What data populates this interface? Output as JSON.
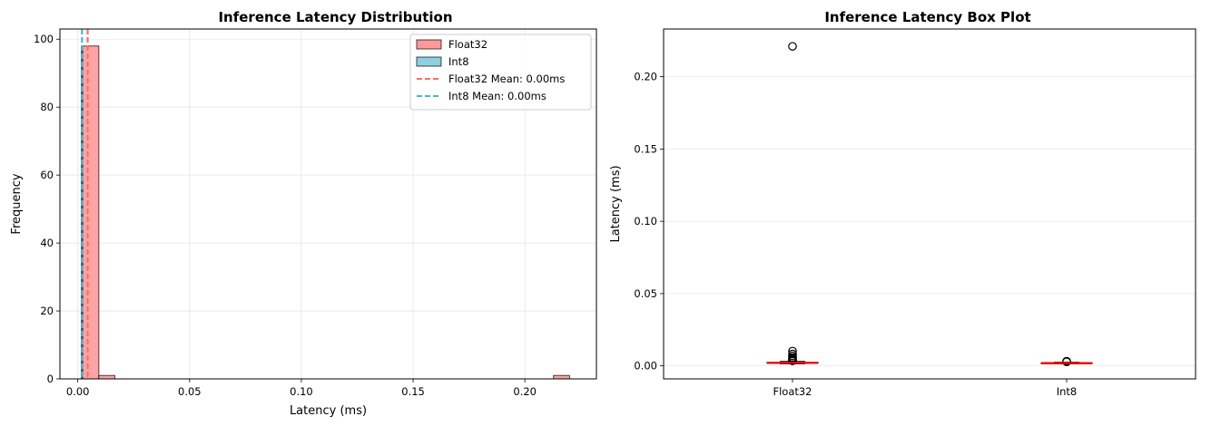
{
  "chart_data": [
    {
      "type": "bar",
      "subtype": "histogram",
      "title": "Inference Latency Distribution",
      "xlabel": "Latency (ms)",
      "ylabel": "Frequency",
      "xlim": [
        -0.008,
        0.232
      ],
      "ylim": [
        0,
        103
      ],
      "xticks": [
        0.0,
        0.05,
        0.1,
        0.15,
        0.2
      ],
      "xtick_labels": [
        "0.00",
        "0.05",
        "0.10",
        "0.15",
        "0.20"
      ],
      "yticks": [
        0,
        20,
        40,
        60,
        80,
        100
      ],
      "ytick_labels": [
        "0",
        "20",
        "40",
        "60",
        "80",
        "100"
      ],
      "grid": true,
      "legend_position": "top-right",
      "series": [
        {
          "name": "Float32",
          "color": "#ff9999",
          "bins": [
            {
              "start": 0.0022,
              "end": 0.0094,
              "count": 98
            },
            {
              "start": 0.0094,
              "end": 0.0166,
              "count": 1
            },
            {
              "start": 0.2128,
              "end": 0.22,
              "count": 1
            }
          ]
        },
        {
          "name": "Int8",
          "color": "#8ecfe0",
          "bins": [
            {
              "start": 0.0016,
              "end": 0.0021,
              "count": 98
            }
          ]
        }
      ],
      "vlines": [
        {
          "name": "Float32 Mean: 0.00ms",
          "x": 0.0044,
          "color": "#ff6b6b"
        },
        {
          "name": "Int8 Mean: 0.00ms",
          "x": 0.0019,
          "color": "#45b7d1"
        }
      ]
    },
    {
      "type": "box",
      "title": "Inference Latency Box Plot",
      "xlabel": "",
      "ylabel": "Latency (ms)",
      "ylim": [
        -0.009,
        0.233
      ],
      "yticks": [
        0.0,
        0.05,
        0.1,
        0.15,
        0.2
      ],
      "ytick_labels": [
        "0.00",
        "0.05",
        "0.10",
        "0.15",
        "0.20"
      ],
      "categories": [
        "Float32",
        "Int8"
      ],
      "grid": true,
      "median_color": "#ff0000",
      "boxes": [
        {
          "name": "Float32",
          "q1": 0.0018,
          "median": 0.0021,
          "q3": 0.0024,
          "whislo": 0.0014,
          "whishi": 0.0031,
          "fliers": [
            0.221,
            0.0102,
            0.0082,
            0.0069,
            0.0058,
            0.0049,
            0.0042,
            0.0038,
            0.0035
          ]
        },
        {
          "name": "Int8",
          "q1": 0.0017,
          "median": 0.0019,
          "q3": 0.0021,
          "whislo": 0.0014,
          "whishi": 0.0025,
          "fliers": [
            0.0032,
            0.0028
          ]
        }
      ]
    }
  ]
}
